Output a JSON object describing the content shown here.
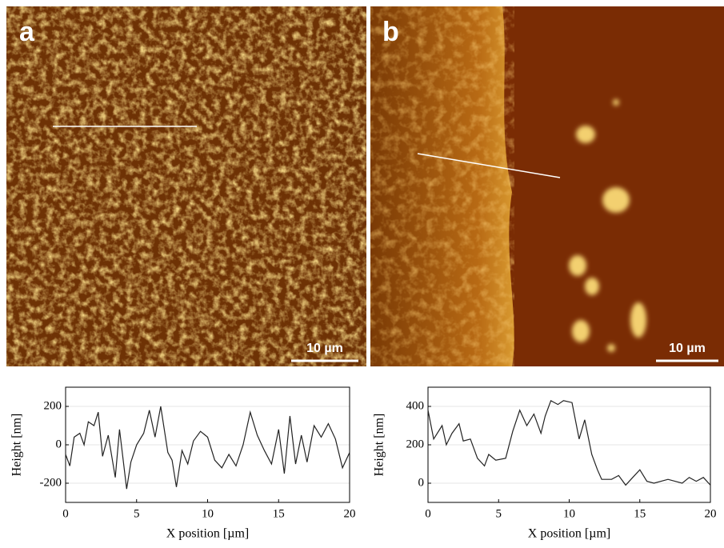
{
  "panels": [
    {
      "label": "a",
      "scale_bar": "10 µm"
    },
    {
      "label": "b",
      "scale_bar": "10 µm"
    }
  ],
  "chart_data": [
    {
      "type": "line",
      "xlabel": "X position [µm]",
      "ylabel": "Height [nm]",
      "color": "#222222",
      "grid": true,
      "xlim": [
        0,
        20
      ],
      "xticks": [
        0,
        5,
        10,
        15,
        20
      ],
      "ylim": [
        -300,
        300
      ],
      "yticks": [
        -200,
        0,
        200
      ],
      "x": [
        0,
        0.3,
        0.6,
        1,
        1.3,
        1.6,
        2,
        2.3,
        2.6,
        3,
        3.5,
        3.8,
        4.3,
        4.6,
        5,
        5.5,
        5.9,
        6.3,
        6.7,
        7.2,
        7.5,
        7.8,
        8.2,
        8.6,
        9,
        9.5,
        10,
        10.5,
        11,
        11.5,
        12,
        12.5,
        13,
        13.5,
        14,
        14.5,
        15,
        15.4,
        15.8,
        16.2,
        16.6,
        17,
        17.5,
        18,
        18.5,
        19,
        19.5,
        20
      ],
      "values": [
        -50,
        -110,
        40,
        60,
        0,
        120,
        100,
        170,
        -60,
        50,
        -170,
        80,
        -230,
        -90,
        0,
        60,
        180,
        40,
        200,
        -40,
        -80,
        -220,
        -30,
        -100,
        20,
        70,
        40,
        -80,
        -120,
        -50,
        -110,
        0,
        170,
        50,
        -30,
        -100,
        80,
        -150,
        150,
        -100,
        50,
        -90,
        100,
        40,
        110,
        30,
        -120,
        -40
      ]
    },
    {
      "type": "line",
      "xlabel": "X position [µm]",
      "ylabel": "Height [nm]",
      "color": "#222222",
      "grid": true,
      "xlim": [
        0,
        20
      ],
      "xticks": [
        0,
        5,
        10,
        15,
        20
      ],
      "ylim": [
        -100,
        500
      ],
      "yticks": [
        0,
        200,
        400
      ],
      "x": [
        0,
        0.4,
        1,
        1.3,
        1.7,
        2.2,
        2.5,
        3,
        3.5,
        4,
        4.3,
        4.8,
        5.5,
        6,
        6.5,
        7,
        7.5,
        8,
        8.3,
        8.7,
        9.2,
        9.6,
        10.2,
        10.7,
        11.1,
        11.6,
        12,
        12.3,
        13,
        13.5,
        14,
        14.5,
        15,
        15.5,
        16,
        17,
        18,
        18.5,
        19,
        19.5,
        20
      ],
      "values": [
        380,
        230,
        300,
        200,
        260,
        310,
        220,
        230,
        130,
        90,
        150,
        120,
        130,
        270,
        380,
        300,
        360,
        260,
        350,
        430,
        410,
        430,
        420,
        230,
        330,
        150,
        70,
        20,
        20,
        40,
        -10,
        30,
        70,
        10,
        0,
        20,
        0,
        30,
        10,
        30,
        -10
      ]
    }
  ]
}
